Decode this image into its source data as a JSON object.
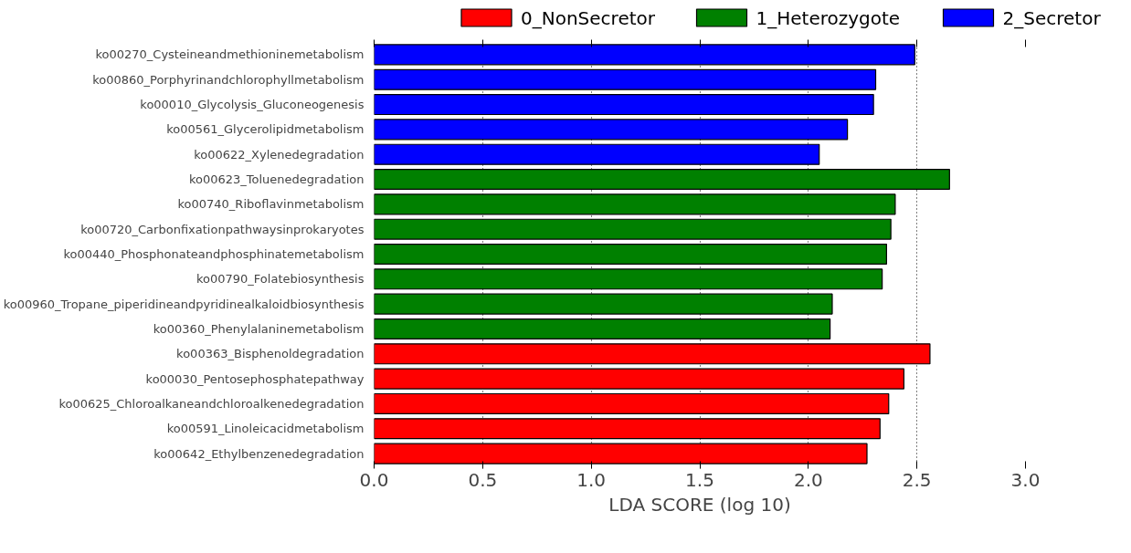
{
  "chart_data": {
    "type": "bar",
    "orientation": "horizontal",
    "xlabel": "LDA SCORE (log 10)",
    "categories": [
      "ko00270_Cysteineandmethioninemetabolism",
      "ko00860_Porphyrinandchlorophyllmetabolism",
      "ko00010_Glycolysis_Gluconeogenesis",
      "ko00561_Glycerolipidmetabolism",
      "ko00622_Xylenedegradation",
      "ko00623_Toluenedegradation",
      "ko00740_Riboflavinmetabolism",
      "ko00720_Carbonfixationpathwaysinprokaryotes",
      "ko00440_Phosphonateandphosphinatemetabolism",
      "ko00790_Folatebiosynthesis",
      "ko00960_Tropane_piperidineandpyridinealkaloidbiosynthesis",
      "ko00360_Phenylalaninemetabolism",
      "ko00363_Bisphenoldegradation",
      "ko00030_Pentosephosphatepathway",
      "ko00625_Chloroalkaneandchloroalkenedegradation",
      "ko00591_Linoleicacidmetabolism",
      "ko00642_Ethylbenzenedegradation"
    ],
    "series": [
      {
        "name": "0_NonSecretor",
        "color": "#ff0000",
        "values": [
          null,
          null,
          null,
          null,
          null,
          null,
          null,
          null,
          null,
          null,
          null,
          null,
          2.56,
          2.44,
          2.37,
          2.33,
          2.27
        ]
      },
      {
        "name": "1_Heterozygote",
        "color": "#008000",
        "values": [
          null,
          null,
          null,
          null,
          null,
          2.65,
          2.4,
          2.38,
          2.36,
          2.34,
          2.11,
          2.1,
          null,
          null,
          null,
          null,
          null
        ]
      },
      {
        "name": "2_Secretor",
        "color": "#0000ff",
        "values": [
          2.49,
          2.31,
          2.3,
          2.18,
          2.05,
          null,
          null,
          null,
          null,
          null,
          null,
          null,
          null,
          null,
          null,
          null,
          null
        ]
      }
    ],
    "xlim": [
      0,
      3
    ],
    "xticks": [
      {
        "value": 0,
        "label": "0.0"
      },
      {
        "value": 0.5,
        "label": "0.5"
      },
      {
        "value": 1,
        "label": "1.0"
      },
      {
        "value": 1.5,
        "label": "1.5"
      },
      {
        "value": 2,
        "label": "2.0"
      },
      {
        "value": 2.5,
        "label": "2.5"
      },
      {
        "value": 3,
        "label": "3.0"
      }
    ],
    "grid": "x",
    "legend": "top"
  }
}
